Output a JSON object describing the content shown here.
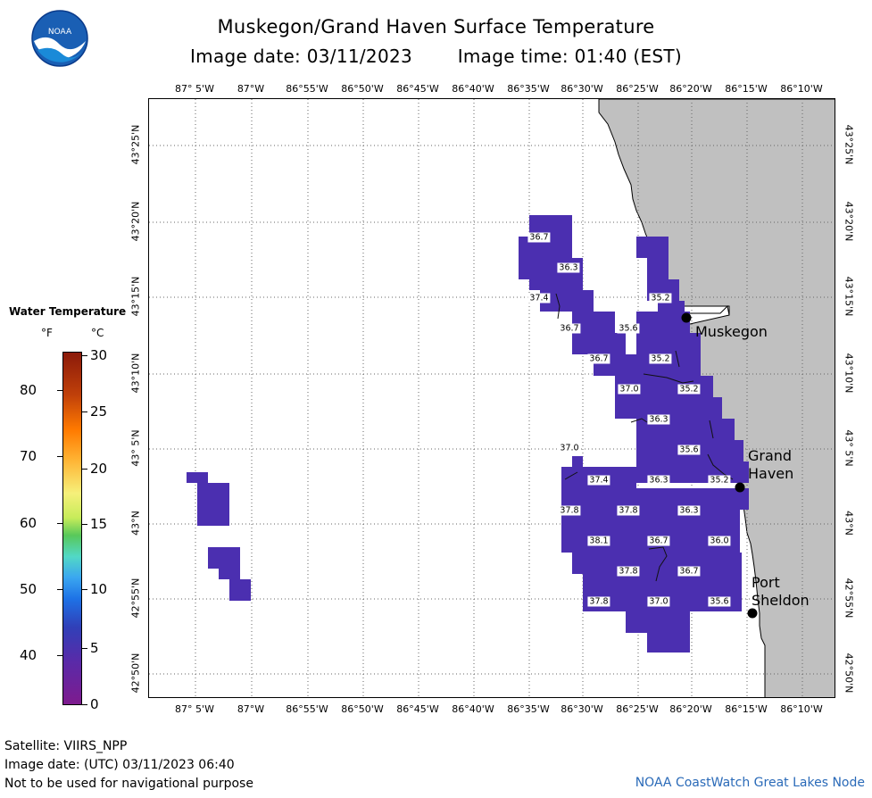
{
  "title": "Muskegon/Grand Haven Surface Temperature",
  "subtitle_date": "Image date: 03/11/2023",
  "subtitle_time": "Image time: 01:40 (EST)",
  "logo_text": "NOAA",
  "lon_labels": [
    "87° 5'W",
    "87°W",
    "86°55'W",
    "86°50'W",
    "86°45'W",
    "86°40'W",
    "86°35'W",
    "86°30'W",
    "86°25'W",
    "86°20'W",
    "86°15'W",
    "86°10'W"
  ],
  "lat_labels": [
    "43°25'N",
    "43°20'N",
    "43°15'N",
    "43°10'N",
    "43° 5'N",
    "43°N",
    "42°55'N",
    "42°50'N"
  ],
  "legend": {
    "title": "Water Temperature",
    "unit_f": "°F",
    "unit_c": "°C",
    "f_ticks": [
      "80",
      "70",
      "60",
      "50",
      "40"
    ],
    "c_ticks": [
      "30",
      "25",
      "20",
      "15",
      "10",
      "5",
      "0"
    ]
  },
  "cities": {
    "muskegon": "Muskegon",
    "grand_haven_1": "Grand",
    "grand_haven_2": "Haven",
    "port_sheldon_1": "Port",
    "port_sheldon_2": "Sheldon"
  },
  "temperature_labels": [
    "36.7",
    "36.3",
    "37.4",
    "35.2",
    "36.7",
    "35.6",
    "36.7",
    "35.2",
    "37.0",
    "35.2",
    "36.3",
    "35.6",
    "37.0",
    "37.4",
    "36.3",
    "35.2",
    "37.8",
    "37.8",
    "36.3",
    "38.1",
    "36.7",
    "36.0",
    "37.8",
    "36.7",
    "37.8",
    "37.0",
    "35.6"
  ],
  "footer": {
    "satellite": "Satellite: VIIRS_NPP",
    "image_date_utc": "Image date: (UTC) 03/11/2023   06:40",
    "disclaimer": "Not to be used for navigational purpose",
    "credit": "NOAA CoastWatch Great Lakes Node"
  },
  "colors": {
    "water_cells": "#4b2fb0",
    "land": "#c0c0c0",
    "credit": "#2a6ab8"
  }
}
